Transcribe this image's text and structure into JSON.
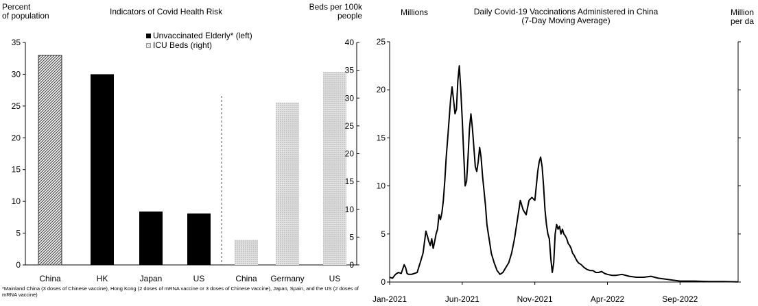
{
  "chart_data": [
    {
      "type": "bar",
      "title": "Indicators of Covid Health Risk",
      "ylabel_left": "Percent\nof population",
      "ylabel_right": "Beds per 100k\npeople",
      "left_axis": {
        "min": 0,
        "max": 35,
        "ticks": [
          "0",
          "5",
          "10",
          "15",
          "20",
          "25",
          "30",
          "35"
        ]
      },
      "right_axis": {
        "min": 0,
        "max": 40,
        "ticks": [
          "0",
          "5",
          "10",
          "15",
          "20",
          "25",
          "30",
          "35",
          "40"
        ]
      },
      "series": [
        {
          "name": "Unvaccinated Elderly* (left)",
          "axis": "left",
          "color": "#000000",
          "categories": [
            "China",
            "HK",
            "Japan",
            "US"
          ],
          "values": [
            33,
            30,
            8.4,
            8.1
          ]
        },
        {
          "name": "ICU Beds (right)",
          "axis": "right",
          "color": "#c8c8c8",
          "categories": [
            "China",
            "Germany",
            "US"
          ],
          "values": [
            4.5,
            29.2,
            34.7
          ]
        }
      ],
      "footnote": "*Mainland China (3 doses of Chinese vaccine), Hong Kong (2 doses of mRNA vaccine or 3 doses of Chinese vaccine), Japan, Spain, and the US (2 doses of mRNA vaccine)"
    },
    {
      "type": "line",
      "title": "Daily Covid-19 Vaccinations Administered in China\n(7-Day Moving Average)",
      "ylabel": "Millions",
      "ylabel_right": "Million\nper da",
      "y_axis": {
        "min": 0,
        "max": 25,
        "ticks": [
          "0",
          "5",
          "10",
          "15",
          "20",
          "25"
        ]
      },
      "x_ticks": [
        "Jan-2021",
        "Jun-2021",
        "Nov-2021",
        "Apr-2022",
        "Sep-2022"
      ],
      "x_tick_months": [
        0,
        5,
        10,
        15,
        20
      ],
      "x_range_months": [
        0,
        24
      ],
      "series": [
        {
          "name": "",
          "x": [
            0,
            0.2,
            0.4,
            0.6,
            0.8,
            1,
            1.1,
            1.2,
            1.3,
            1.5,
            1.7,
            1.9,
            2,
            2.1,
            2.2,
            2.3,
            2.5,
            2.6,
            2.7,
            2.8,
            2.9,
            3,
            3.1,
            3.2,
            3.3,
            3.4,
            3.5,
            3.6,
            3.7,
            3.8,
            3.9,
            4,
            4.1,
            4.2,
            4.3,
            4.4,
            4.5,
            4.6,
            4.7,
            4.8,
            4.9,
            5,
            5.1,
            5.2,
            5.3,
            5.4,
            5.5,
            5.6,
            5.7,
            5.8,
            5.9,
            6,
            6.1,
            6.2,
            6.3,
            6.4,
            6.5,
            6.6,
            6.7,
            6.8,
            6.9,
            7,
            7.2,
            7.4,
            7.6,
            7.8,
            8,
            8.2,
            8.4,
            8.6,
            8.8,
            9,
            9.2,
            9.4,
            9.6,
            9.8,
            10,
            10.1,
            10.2,
            10.3,
            10.4,
            10.5,
            10.6,
            10.7,
            10.8,
            10.9,
            11,
            11.1,
            11.2,
            11.3,
            11.4,
            11.5,
            11.6,
            11.7,
            11.8,
            11.9,
            12,
            12.1,
            12.2,
            12.3,
            12.4,
            12.5,
            12.6,
            12.7,
            12.8,
            12.9,
            13,
            13.2,
            13.4,
            13.6,
            13.8,
            14,
            14.2,
            14.4,
            14.6,
            14.8,
            15,
            15.3,
            15.6,
            16,
            16.5,
            17,
            17.5,
            18,
            18.5,
            19,
            19.5,
            20,
            20.5,
            21,
            22,
            23,
            24
          ],
          "y": [
            0.5,
            0.4,
            0.8,
            1.0,
            0.9,
            1.8,
            1.5,
            0.9,
            0.8,
            0.8,
            0.9,
            1.0,
            1.5,
            2.0,
            2.5,
            3.0,
            5.3,
            4.8,
            4.2,
            3.8,
            4.5,
            3.5,
            4.2,
            5.0,
            5.5,
            7.0,
            6.5,
            7.2,
            8.5,
            10.5,
            13.0,
            15.0,
            17.0,
            19.0,
            20.3,
            19.0,
            17.5,
            18.0,
            21.0,
            22.5,
            20.0,
            17.0,
            13.5,
            10.0,
            10.5,
            13.0,
            16.0,
            17.5,
            16.0,
            14.0,
            12.0,
            11.5,
            12.5,
            14.0,
            13.0,
            11.0,
            9.5,
            8.0,
            6.0,
            5.0,
            4.0,
            3.0,
            2.0,
            1.2,
            0.8,
            1.0,
            1.5,
            2.0,
            3.0,
            4.5,
            6.5,
            8.5,
            7.5,
            7.0,
            8.5,
            8.8,
            8.5,
            10.0,
            11.5,
            12.5,
            13.0,
            12.0,
            10.0,
            7.5,
            6.0,
            5.0,
            4.5,
            2.5,
            1.0,
            2.0,
            5.0,
            6.0,
            5.5,
            5.8,
            5.0,
            5.5,
            5.0,
            4.8,
            4.5,
            4.0,
            3.8,
            3.5,
            3.0,
            2.8,
            2.5,
            2.2,
            2.0,
            1.8,
            1.5,
            1.3,
            1.2,
            1.2,
            1.0,
            1.0,
            1.1,
            0.9,
            0.8,
            0.7,
            0.7,
            0.8,
            0.6,
            0.5,
            0.5,
            0.6,
            0.4,
            0.3,
            0.2,
            0.1,
            0.1,
            0.1,
            0.05,
            0.05,
            0.02
          ]
        }
      ]
    }
  ]
}
